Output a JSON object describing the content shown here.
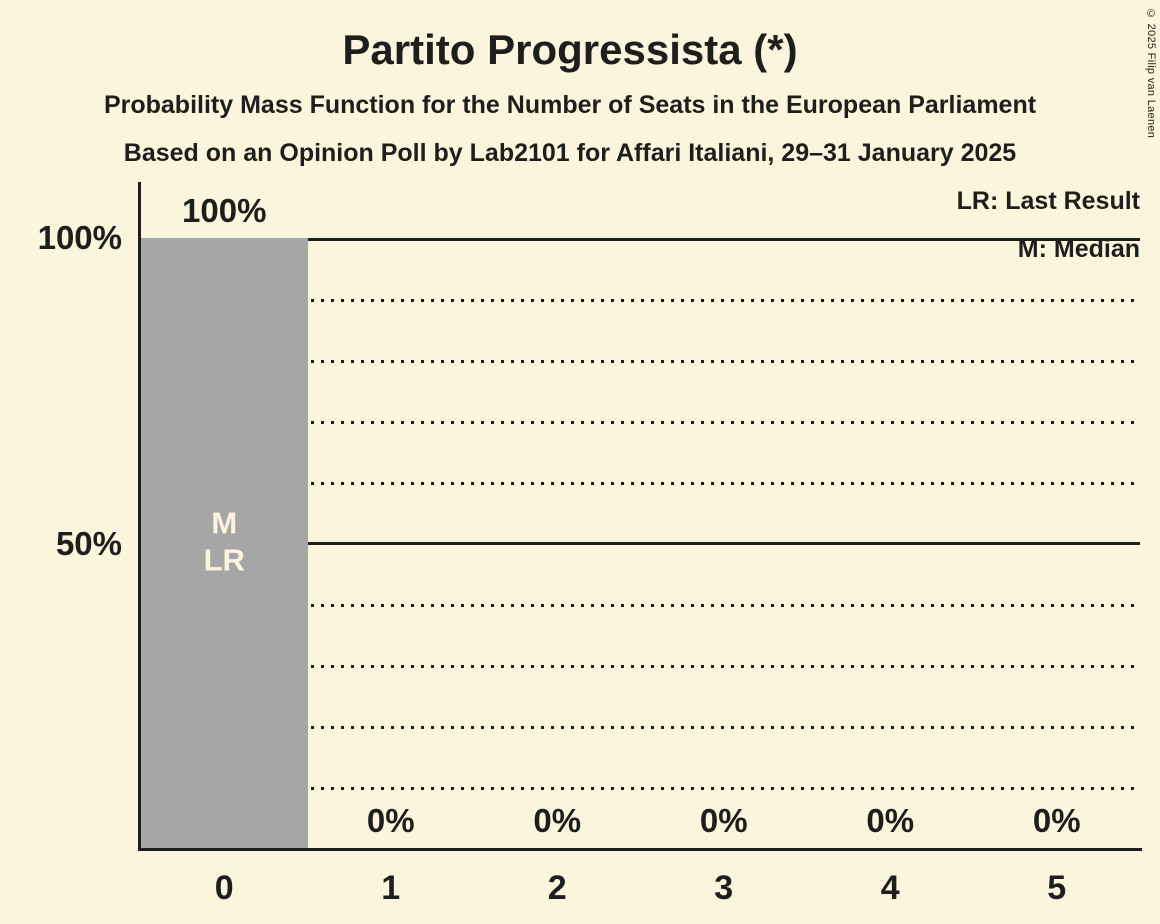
{
  "page": {
    "background_color": "#FAF5DC",
    "text_color": "#1E1E1C"
  },
  "header": {
    "title": "Partito Progressista (*)",
    "subtitle1": "Probability Mass Function for the Number of Seats in the European Parliament",
    "subtitle2": "Based on an Opinion Poll by Lab2101 for Affari Italiani, 29–31 January 2025"
  },
  "legend": {
    "last_result": "LR: Last Result",
    "median": "M: Median"
  },
  "copyright": "© 2025 Filip van Laenen",
  "chart_data": {
    "type": "bar",
    "title": "Partito Progressista (*)",
    "categories": [
      "0",
      "1",
      "2",
      "3",
      "4",
      "5"
    ],
    "values": [
      100,
      0,
      0,
      0,
      0,
      0
    ],
    "value_labels": [
      "100%",
      "0%",
      "0%",
      "0%",
      "0%",
      "0%"
    ],
    "xlabel": "",
    "ylabel": "",
    "ylim": [
      0,
      100
    ],
    "ytick_labels": [
      "100%",
      "50%"
    ],
    "ytick_positions": [
      100,
      50
    ],
    "gridlines_dotted_percent": [
      10,
      20,
      30,
      40,
      60,
      70,
      80,
      90
    ],
    "gridlines_solid_percent": [
      50,
      100
    ],
    "legend_position": "top-right",
    "bar_color": "#A6A6A6",
    "bar_annotations": [
      "M",
      "LR"
    ],
    "annotated_bar_category": "0",
    "median_seats": 0,
    "last_result_seats": 0
  }
}
